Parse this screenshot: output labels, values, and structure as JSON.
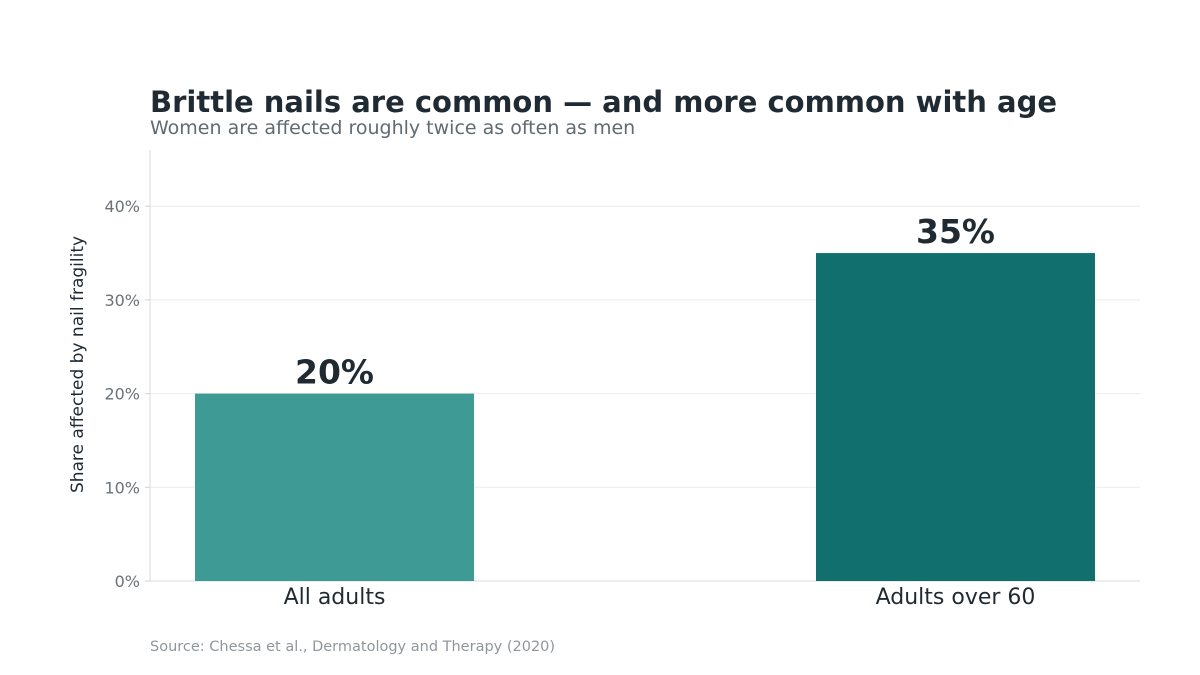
{
  "chart_data": {
    "type": "bar",
    "title": "Brittle nails are common — and more common with age",
    "subtitle": "Women are affected roughly twice as often as men",
    "categories": [
      "All adults",
      "Adults over 60"
    ],
    "values": [
      20,
      35
    ],
    "data_labels": [
      "20%",
      "35%"
    ],
    "bar_colors": [
      "#3e9a95",
      "#116f6d"
    ],
    "xlabel": "",
    "ylabel": "Share affected by nail fragility",
    "ylim": [
      0,
      46
    ],
    "yticks": [
      0,
      10,
      20,
      30,
      40
    ],
    "ytick_labels": [
      "0%",
      "10%",
      "20%",
      "30%",
      "40%"
    ],
    "grid": true,
    "legend": "none",
    "source": "Source: Chessa et al., Dermatology and Therapy (2020)"
  }
}
